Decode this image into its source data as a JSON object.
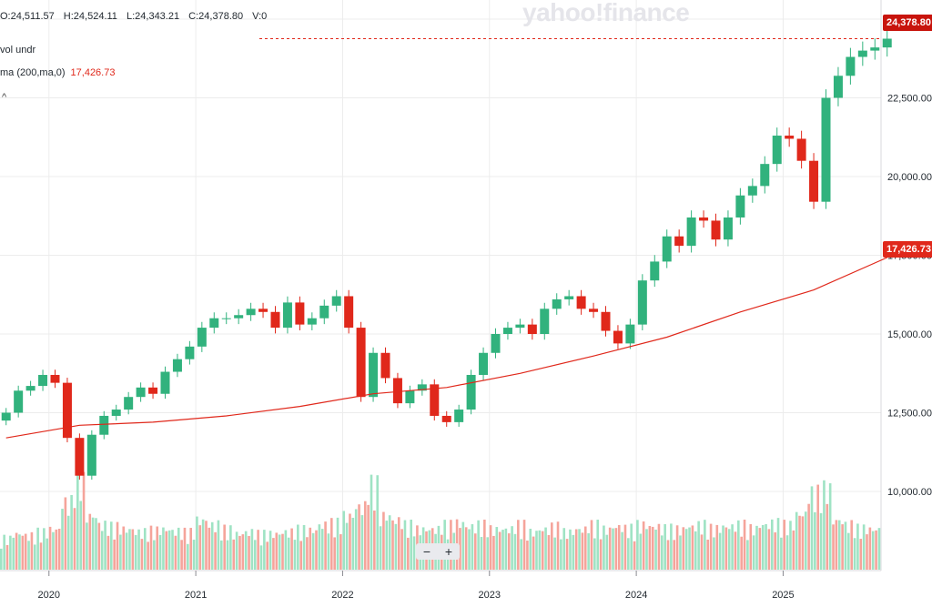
{
  "watermark": "yahoo!finance",
  "ohlc": {
    "open": "O:24,511.57",
    "high": "H:24,524.11",
    "low": "L:24,343.21",
    "close": "C:24,378.80",
    "volume": "V:0"
  },
  "indicators": {
    "volume_label": "vol undr",
    "ma_label": "ma (200,ma,0)",
    "ma_value": "17,426.73"
  },
  "collapse_glyph": "^",
  "zoom": {
    "minus": "−",
    "plus": "+"
  },
  "price_tags": {
    "last": "24,378.80",
    "ma": "17,426.73"
  },
  "colors": {
    "up": "#31b27d",
    "down": "#e0281b",
    "ma_line": "#e0281b",
    "volume_up": "#9fe3c4",
    "volume_down": "#f5a49b",
    "grid": "#ececec"
  },
  "chart_data": {
    "type": "candlestick",
    "title": "",
    "y_ticks": [
      "25,000.00",
      "22,500.00",
      "20,000.00",
      "17,500.00",
      "15,000.00",
      "12,500.00",
      "10,000.00"
    ],
    "y_tick_values": [
      25000,
      22500,
      20000,
      17500,
      15000,
      12500,
      10000
    ],
    "x_ticks": [
      "2020",
      "2021",
      "2022",
      "2023",
      "2024",
      "2025"
    ],
    "ylim": [
      7800,
      25400
    ],
    "xlim": [
      "2019-09",
      "2025-09"
    ],
    "price_series": {
      "name": "Close",
      "x": [
        "2019-09",
        "2019-10",
        "2019-11",
        "2019-12",
        "2020-01",
        "2020-02",
        "2020-03",
        "2020-04",
        "2020-05",
        "2020-06",
        "2020-07",
        "2020-08",
        "2020-09",
        "2020-10",
        "2020-11",
        "2020-12",
        "2021-01",
        "2021-02",
        "2021-03",
        "2021-04",
        "2021-05",
        "2021-06",
        "2021-07",
        "2021-08",
        "2021-09",
        "2021-10",
        "2021-11",
        "2021-12",
        "2022-01",
        "2022-02",
        "2022-03",
        "2022-04",
        "2022-05",
        "2022-06",
        "2022-07",
        "2022-08",
        "2022-09",
        "2022-10",
        "2022-11",
        "2022-12",
        "2023-01",
        "2023-02",
        "2023-03",
        "2023-04",
        "2023-05",
        "2023-06",
        "2023-07",
        "2023-08",
        "2023-09",
        "2023-10",
        "2023-11",
        "2023-12",
        "2024-01",
        "2024-02",
        "2024-03",
        "2024-04",
        "2024-05",
        "2024-06",
        "2024-07",
        "2024-08",
        "2024-09",
        "2024-10",
        "2024-11",
        "2024-12",
        "2025-01",
        "2025-02",
        "2025-03",
        "2025-04",
        "2025-05",
        "2025-06",
        "2025-07",
        "2025-08",
        "2025-09"
      ],
      "values": [
        12500,
        13200,
        13350,
        13700,
        13450,
        11700,
        10500,
        11800,
        12400,
        12600,
        13000,
        13300,
        13100,
        13800,
        14200,
        14600,
        15200,
        15500,
        15500,
        15600,
        15800,
        15700,
        15200,
        16000,
        15300,
        15500,
        15900,
        16200,
        15200,
        13000,
        14400,
        13600,
        12800,
        13200,
        13400,
        12400,
        12200,
        12600,
        13700,
        14400,
        15000,
        15200,
        15300,
        15000,
        15800,
        16100,
        16200,
        15800,
        15700,
        15100,
        14700,
        15300,
        16700,
        17300,
        18100,
        17800,
        18700,
        18600,
        18000,
        18700,
        19400,
        19700,
        20400,
        21300,
        21200,
        20500,
        19200,
        22500,
        23200,
        23800,
        24000,
        24100,
        24378.8
      ]
    },
    "moving_average": {
      "name": "ma (200,ma,0)",
      "x": [
        "2019-09",
        "2020-03",
        "2020-09",
        "2021-03",
        "2021-09",
        "2022-03",
        "2022-09",
        "2023-03",
        "2023-09",
        "2024-03",
        "2024-09",
        "2025-03",
        "2025-09"
      ],
      "values": [
        11700,
        12100,
        12200,
        12400,
        12700,
        13100,
        13300,
        13750,
        14300,
        14900,
        15700,
        16400,
        17426.73
      ]
    },
    "volume_series": {
      "name": "vol undr",
      "note": "relative heights 0-1",
      "values": [
        0.35,
        0.4,
        0.38,
        0.42,
        0.45,
        0.75,
        1.0,
        0.6,
        0.5,
        0.48,
        0.45,
        0.42,
        0.44,
        0.45,
        0.43,
        0.42,
        0.55,
        0.5,
        0.45,
        0.4,
        0.42,
        0.4,
        0.4,
        0.42,
        0.45,
        0.44,
        0.5,
        0.52,
        0.6,
        0.7,
        0.95,
        0.6,
        0.55,
        0.5,
        0.45,
        0.45,
        0.5,
        0.52,
        0.48,
        0.5,
        0.45,
        0.45,
        0.5,
        0.42,
        0.45,
        0.48,
        0.42,
        0.45,
        0.5,
        0.45,
        0.48,
        0.46,
        0.5,
        0.48,
        0.46,
        0.45,
        0.48,
        0.5,
        0.46,
        0.48,
        0.5,
        0.46,
        0.5,
        0.52,
        0.5,
        0.62,
        0.85,
        0.9,
        0.55,
        0.5,
        0.46,
        0.45,
        0.48
      ]
    }
  }
}
